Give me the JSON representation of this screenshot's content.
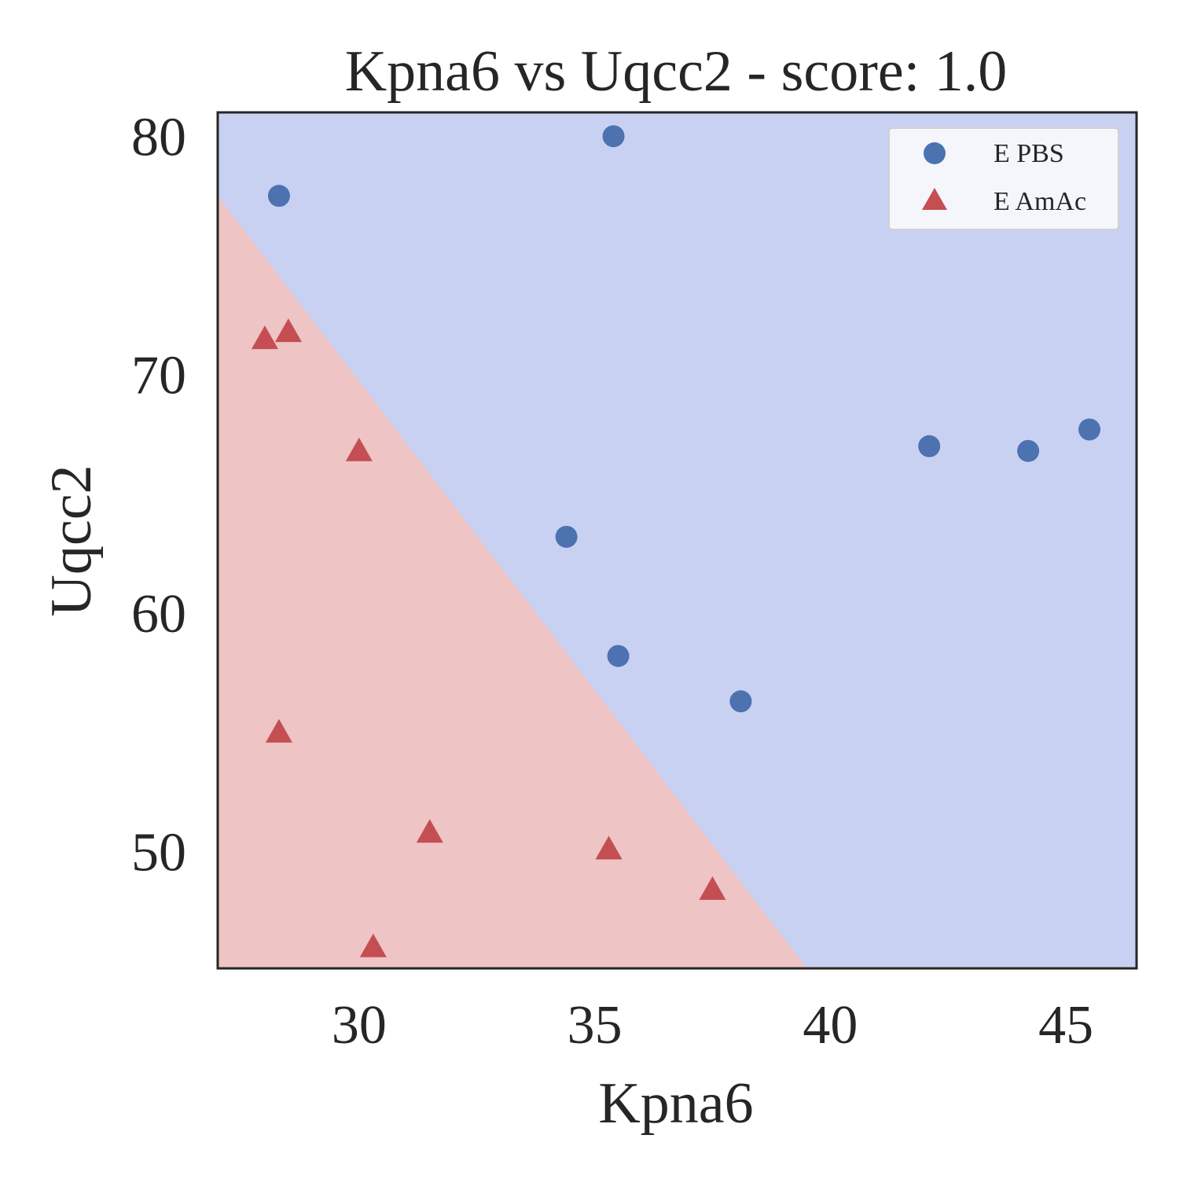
{
  "chart_data": {
    "type": "scatter",
    "title": "Kpna6 vs Uqcc2 - score: 1.0",
    "xlabel": "Kpna6",
    "ylabel": "Uqcc2",
    "xlim": [
      27.0,
      46.5
    ],
    "ylim": [
      45.1,
      81.0
    ],
    "xticks": [
      30,
      35,
      40,
      45
    ],
    "yticks": [
      50,
      60,
      70,
      80
    ],
    "grid": false,
    "legend_position": "top-right",
    "decision_boundary": {
      "points": [
        [
          27.0,
          77.5
        ],
        [
          39.5,
          45.1
        ]
      ],
      "class_below": "E AmAc",
      "class_above": "E PBS"
    },
    "region_colors": {
      "E PBS": "#c9d1f2",
      "E AmAc": "#eec4c4"
    },
    "series": [
      {
        "name": "E PBS",
        "marker": "circle",
        "color": "#4c72b0",
        "points": [
          [
            28.3,
            77.5
          ],
          [
            35.4,
            80.0
          ],
          [
            34.4,
            63.2
          ],
          [
            35.5,
            58.2
          ],
          [
            38.1,
            56.3
          ],
          [
            42.1,
            67.0
          ],
          [
            44.2,
            66.8
          ],
          [
            45.5,
            67.7
          ]
        ]
      },
      {
        "name": "E AmAc",
        "marker": "triangle",
        "color": "#c44e52",
        "points": [
          [
            28.0,
            71.5
          ],
          [
            28.5,
            71.8
          ],
          [
            30.0,
            66.8
          ],
          [
            28.3,
            55.0
          ],
          [
            31.5,
            50.8
          ],
          [
            35.3,
            50.1
          ],
          [
            37.5,
            48.4
          ],
          [
            30.3,
            46.0
          ]
        ]
      }
    ]
  }
}
